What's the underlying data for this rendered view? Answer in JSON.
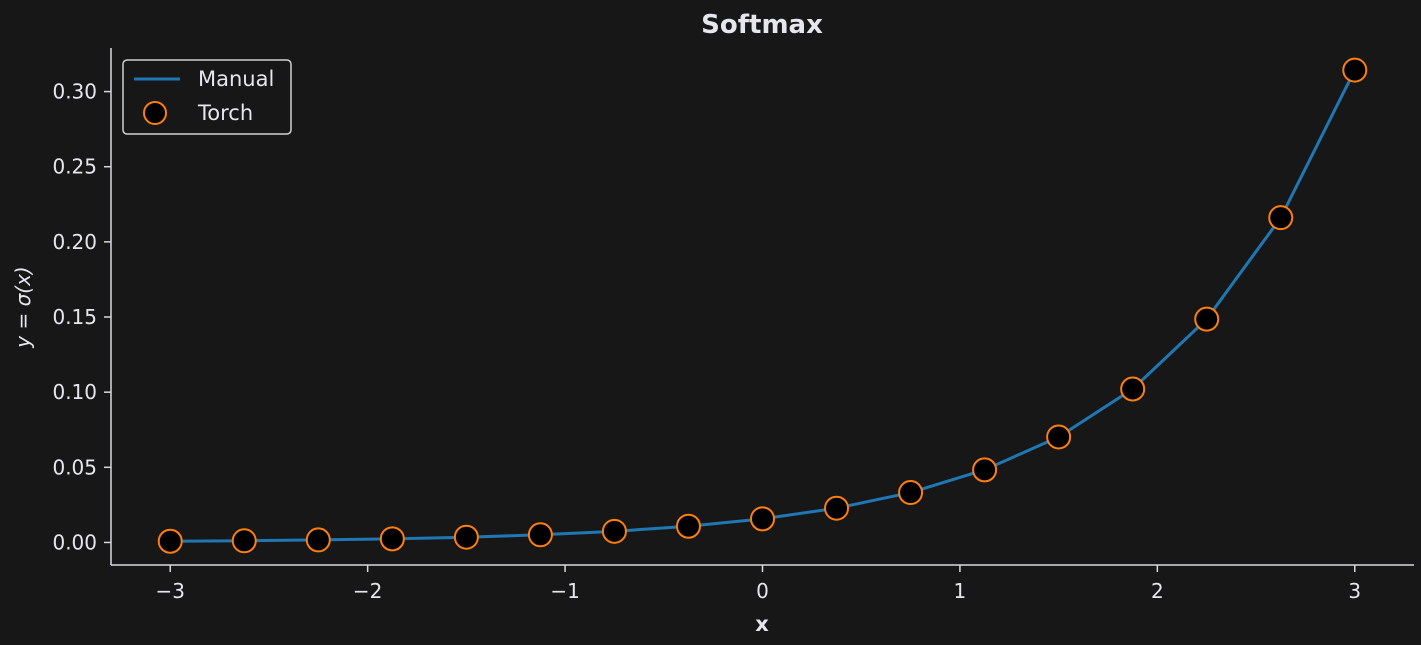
{
  "chart_data": {
    "type": "line",
    "title": "Softmax",
    "xlabel": "x",
    "ylabel": "y = σ(x)",
    "xlim": [
      -3.3,
      3.3
    ],
    "ylim": [
      -0.015,
      0.329
    ],
    "x_ticks": [
      -3,
      -2,
      -1,
      0,
      1,
      2,
      3
    ],
    "x_tick_labels": [
      "−3",
      "−2",
      "−1",
      "0",
      "1",
      "2",
      "3"
    ],
    "y_ticks": [
      0.0,
      0.05,
      0.1,
      0.15,
      0.2,
      0.25,
      0.3
    ],
    "y_tick_labels": [
      "0.00",
      "0.05",
      "0.10",
      "0.15",
      "0.20",
      "0.25",
      "0.30"
    ],
    "grid": false,
    "legend_position": "top-left",
    "x": [
      -3.0,
      -2.625,
      -2.25,
      -1.875,
      -1.5,
      -1.125,
      -0.75,
      -0.375,
      0.0,
      0.375,
      0.75,
      1.125,
      1.5,
      1.875,
      2.25,
      2.625,
      3.0
    ],
    "series": [
      {
        "name": "Manual",
        "style": "line",
        "color": "#1f77b4",
        "values": [
          0.0008,
          0.0011,
          0.0017,
          0.0024,
          0.0035,
          0.0051,
          0.0074,
          0.0108,
          0.0157,
          0.0228,
          0.0332,
          0.0483,
          0.0702,
          0.1021,
          0.1486,
          0.2161,
          0.3143
        ]
      },
      {
        "name": "Torch",
        "style": "markers",
        "color": "#ff7f0e",
        "values": [
          0.0008,
          0.0011,
          0.0017,
          0.0024,
          0.0035,
          0.0051,
          0.0074,
          0.0108,
          0.0157,
          0.0228,
          0.0332,
          0.0483,
          0.0702,
          0.1021,
          0.1486,
          0.2161,
          0.3143
        ]
      }
    ]
  },
  "colors": {
    "background": "#171717",
    "axis": "#d8d8e0",
    "text": "#e6e6ee",
    "marker_fill": "#000000"
  }
}
